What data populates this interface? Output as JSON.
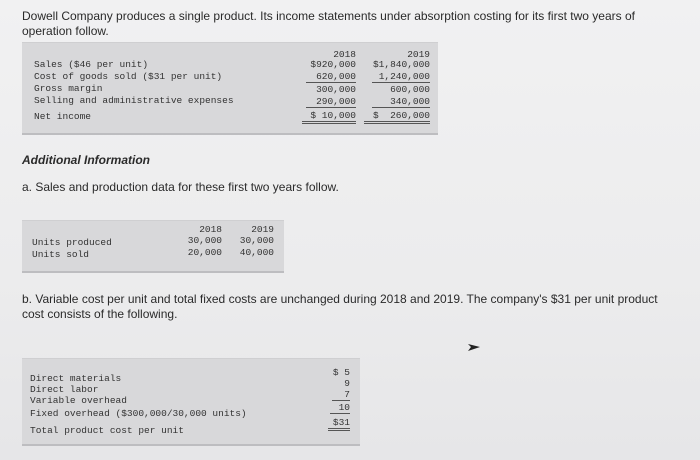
{
  "intro": "Dowell Company produces a single product. Its income statements under absorption costing for its first two years of operation follow.",
  "income": {
    "col_2018": "2018",
    "col_2019": "2019",
    "rows": [
      {
        "label": "Sales ($46 per unit)",
        "v2018": "$920,000",
        "v2019": "$1,840,000"
      },
      {
        "label": "Cost of goods sold ($31 per unit)",
        "v2018": "620,000",
        "v2019": "1,240,000"
      },
      {
        "label": "Gross margin",
        "v2018": "300,000",
        "v2019": "600,000"
      },
      {
        "label": "Selling and administrative expenses",
        "v2018": "290,000",
        "v2019": "340,000"
      },
      {
        "label": "Net income",
        "v2018": "$ 10,000",
        "v2019": "$  260,000"
      }
    ]
  },
  "additional_heading": "Additional Information",
  "part_a": "a. Sales and production data for these first two years follow.",
  "units": {
    "col_2018": "2018",
    "col_2019": "2019",
    "rows": [
      {
        "label": "Units produced",
        "v2018": "30,000",
        "v2019": "30,000"
      },
      {
        "label": "Units sold",
        "v2018": "20,000",
        "v2019": "40,000"
      }
    ]
  },
  "part_b": "b. Variable cost per unit and total fixed costs are unchanged during 2018 and 2019. The company's $31 per unit product cost consists of the following.",
  "cost": {
    "rows": [
      {
        "label": "Direct materials",
        "value": "$ 5"
      },
      {
        "label": "Direct labor",
        "value": "9"
      },
      {
        "label": "Variable overhead",
        "value": "7"
      },
      {
        "label": "Fixed overhead ($300,000/30,000 units)",
        "value": "10"
      },
      {
        "label": "Total product cost per unit",
        "value": "$31"
      }
    ]
  }
}
